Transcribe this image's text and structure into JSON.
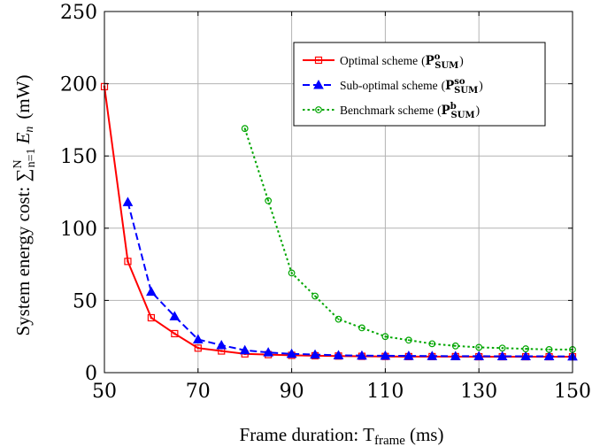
{
  "chart_data": {
    "type": "line",
    "xlabel": "Frame duration: T",
    "xlabel_sub": "frame",
    "xlabel_unit": "(ms)",
    "ylabel": "System energy cost: ∑",
    "ylabel_sum_top": "N",
    "ylabel_sum_bottom": "n=1",
    "ylabel_var": "E",
    "ylabel_var_sub": "n",
    "ylabel_unit": "(mW)",
    "xlim": [
      50,
      150
    ],
    "ylim": [
      0,
      250
    ],
    "xticks": [
      50,
      70,
      90,
      110,
      130,
      150
    ],
    "yticks": [
      0,
      50,
      100,
      150,
      200,
      250
    ],
    "grid": true,
    "legend_position": "top-right",
    "series": [
      {
        "name": "Optimal scheme",
        "symbol": "P",
        "symbol_sup": "o",
        "symbol_sub": "SUM",
        "color": "#ff0000",
        "marker": "square",
        "dash": "solid",
        "x": [
          50,
          55,
          60,
          65,
          70,
          75,
          80,
          85,
          90,
          95,
          100,
          105,
          110,
          115,
          120,
          125,
          130,
          135,
          140,
          145,
          150
        ],
        "y": [
          198,
          77,
          38,
          27,
          17,
          15,
          13,
          12.5,
          12,
          11.7,
          11.5,
          11.3,
          11.2,
          11.1,
          11.1,
          11.1,
          11,
          11,
          11,
          11,
          11
        ]
      },
      {
        "name": "Sub-optimal scheme",
        "symbol": "P",
        "symbol_sup": "so",
        "symbol_sub": "SUM",
        "color": "#0000ff",
        "marker": "triangle",
        "dash": "dashed",
        "x": [
          55,
          60,
          65,
          70,
          75,
          80,
          85,
          90,
          95,
          100,
          105,
          110,
          115,
          120,
          125,
          130,
          135,
          140,
          145,
          150
        ],
        "y": [
          118,
          56,
          39,
          23,
          19,
          15.5,
          14,
          13,
          12.5,
          12,
          11.8,
          11.7,
          11.6,
          11.5,
          11.4,
          11.4,
          11.3,
          11.3,
          11.3,
          11.2
        ]
      },
      {
        "name": "Benchmark scheme",
        "symbol": "P",
        "symbol_sup": "b",
        "symbol_sub": "SUM",
        "color": "#00a600",
        "marker": "circle",
        "dash": "dotted",
        "x": [
          80,
          85,
          90,
          95,
          100,
          105,
          110,
          115,
          120,
          125,
          130,
          135,
          140,
          145,
          150
        ],
        "y": [
          169,
          119,
          69,
          53,
          37,
          31,
          25,
          22.5,
          20,
          18.5,
          17.5,
          17,
          16.5,
          16,
          16
        ]
      }
    ]
  }
}
